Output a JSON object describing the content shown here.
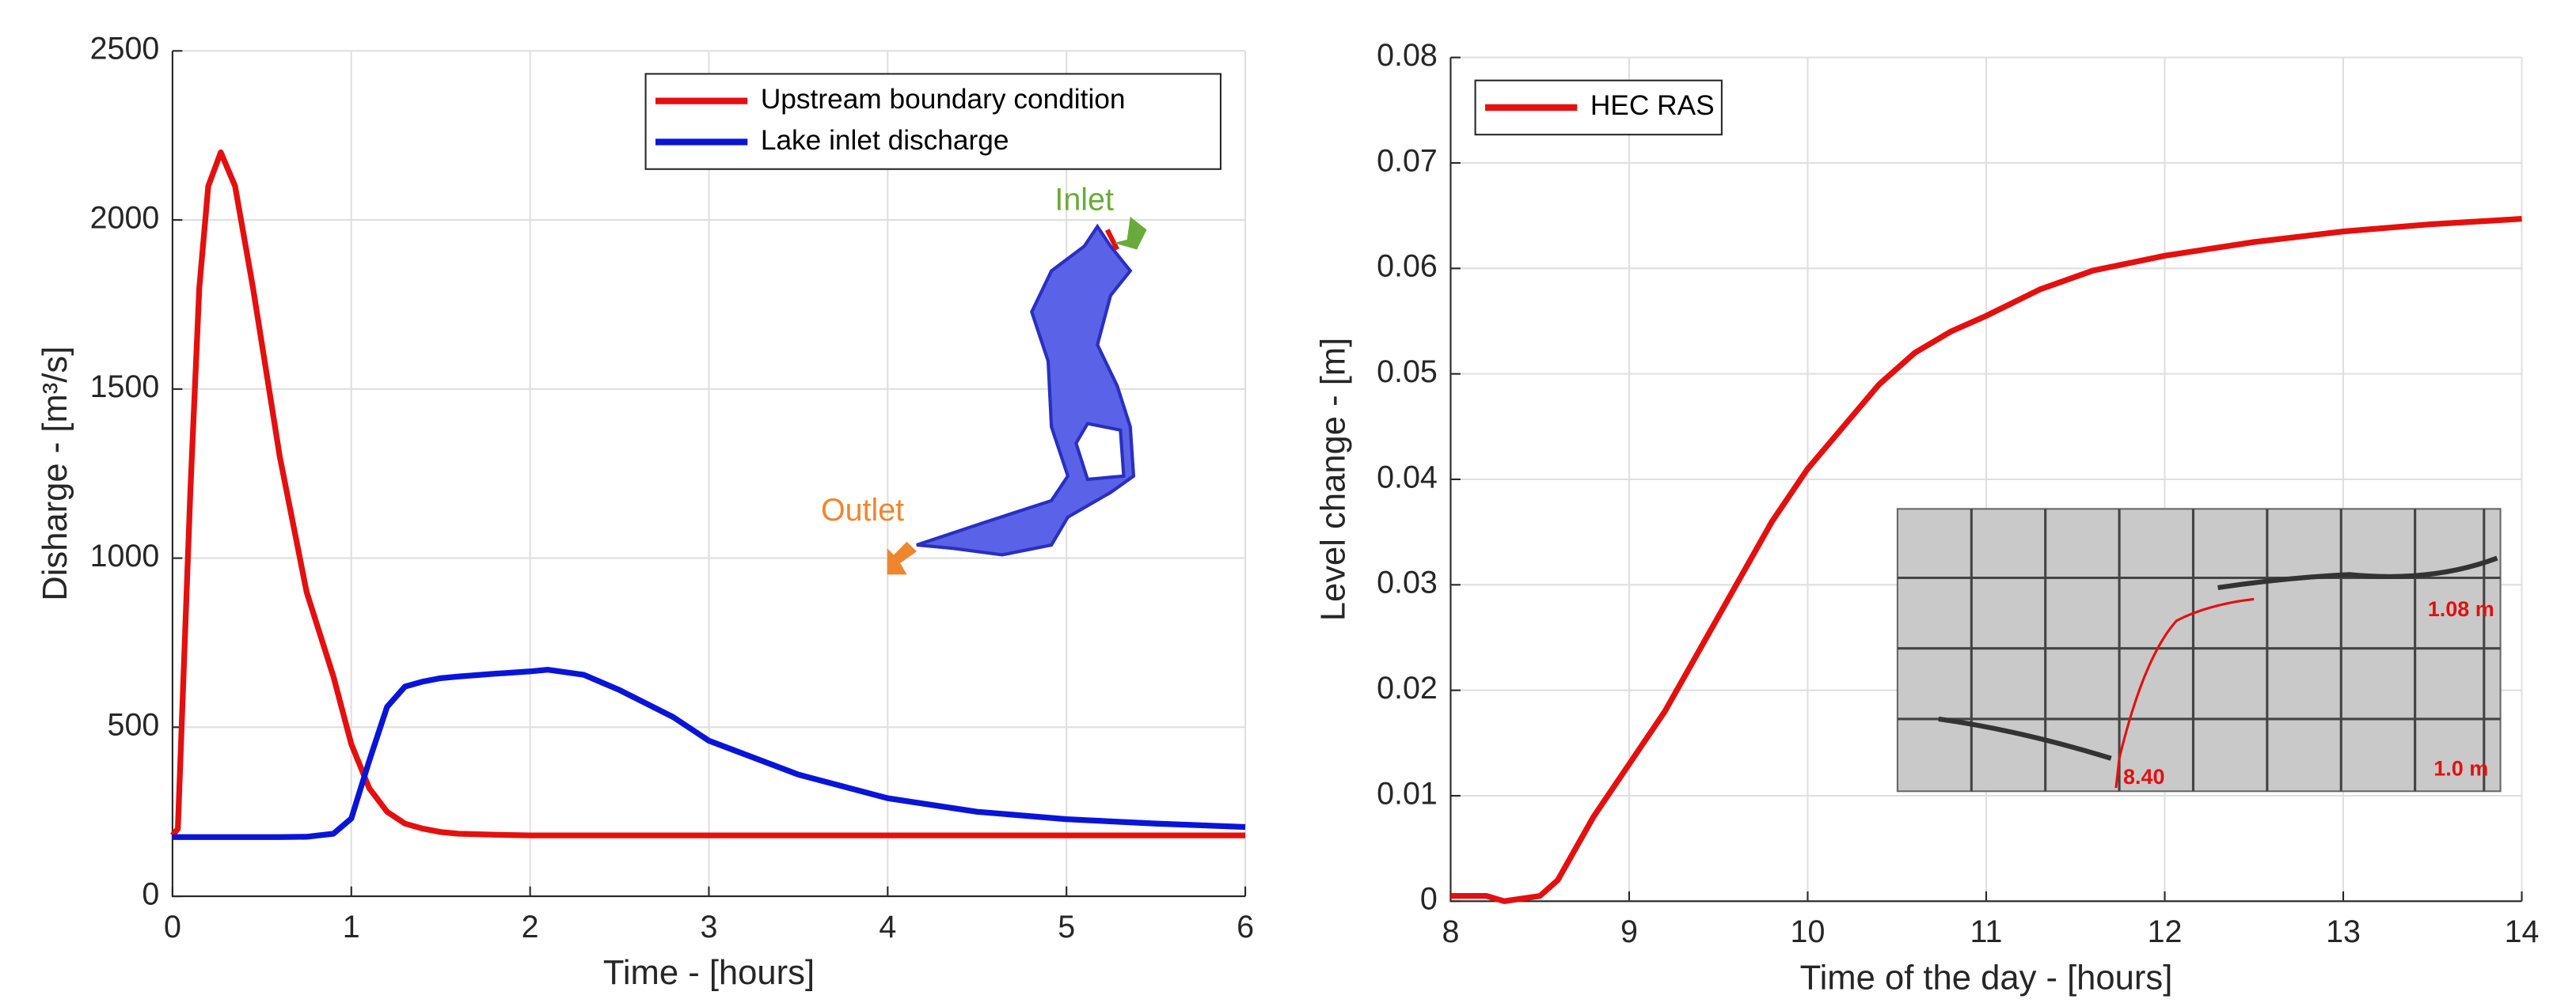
{
  "chart_data": [
    {
      "type": "line",
      "xlabel": "Time - [hours]",
      "ylabel": "Disharge - [m³/s]",
      "x": [
        0,
        0.03,
        0.1,
        0.15,
        0.2,
        0.27,
        0.35,
        0.45,
        0.6,
        0.75,
        0.9,
        1.0,
        1.1,
        1.2,
        1.3,
        1.4,
        1.5,
        1.6,
        1.8,
        2.0,
        2.1,
        2.3,
        2.5,
        2.8,
        3.0,
        3.5,
        4.0,
        4.5,
        5.0,
        5.5,
        6.0
      ],
      "series": [
        {
          "name": "Upstream boundary condition",
          "color": "#e3100f",
          "values": [
            180,
            200,
            1200,
            1800,
            2100,
            2200,
            2100,
            1800,
            1300,
            900,
            650,
            450,
            320,
            250,
            215,
            200,
            190,
            185,
            182,
            180,
            180,
            180,
            180,
            180,
            180,
            180,
            180,
            180,
            180,
            180,
            180
          ]
        },
        {
          "name": "Lake inlet discharge",
          "color": "#0a14d9",
          "values": [
            175,
            175,
            175,
            175,
            175,
            175,
            175,
            175,
            175,
            176,
            185,
            230,
            400,
            560,
            620,
            635,
            645,
            650,
            658,
            665,
            670,
            655,
            610,
            530,
            460,
            360,
            290,
            250,
            228,
            215,
            205
          ]
        }
      ],
      "xlim": [
        0,
        6
      ],
      "xticks": [
        0,
        1,
        2,
        3,
        4,
        5,
        6
      ],
      "ylim": [
        0,
        2500
      ],
      "yticks": [
        0,
        500,
        1000,
        1500,
        2000,
        2500
      ],
      "grid": true,
      "legend": "upper right",
      "annotations": [
        "Inlet",
        "Outlet"
      ]
    },
    {
      "type": "line",
      "xlabel": "Time of the day - [hours]",
      "ylabel": "Level change - [m]",
      "x": [
        8,
        8.2,
        8.3,
        8.5,
        8.6,
        8.7,
        8.8,
        9,
        9.2,
        9.4,
        9.6,
        9.8,
        10,
        10.2,
        10.4,
        10.6,
        10.8,
        11,
        11.3,
        11.6,
        12,
        12.5,
        13,
        13.5,
        14
      ],
      "series": [
        {
          "name": "HEC RAS",
          "color": "#e3100f",
          "values": [
            0.0005,
            0.0005,
            0,
            0.0005,
            0.002,
            0.005,
            0.008,
            0.013,
            0.018,
            0.024,
            0.03,
            0.036,
            0.041,
            0.045,
            0.049,
            0.052,
            0.054,
            0.0555,
            0.058,
            0.0598,
            0.0612,
            0.0625,
            0.0635,
            0.0642,
            0.0647
          ]
        }
      ],
      "xlim": [
        8,
        14
      ],
      "xticks": [
        8,
        9,
        10,
        11,
        12,
        13,
        14
      ],
      "ylim": [
        0,
        0.08
      ],
      "yticks": [
        0,
        0.01,
        0.02,
        0.03,
        0.04,
        0.05,
        0.06,
        0.07,
        0.08
      ],
      "grid": true,
      "legend": "upper left",
      "annotations": [
        "1.08 m",
        "8.40",
        "1.0 m"
      ]
    }
  ]
}
